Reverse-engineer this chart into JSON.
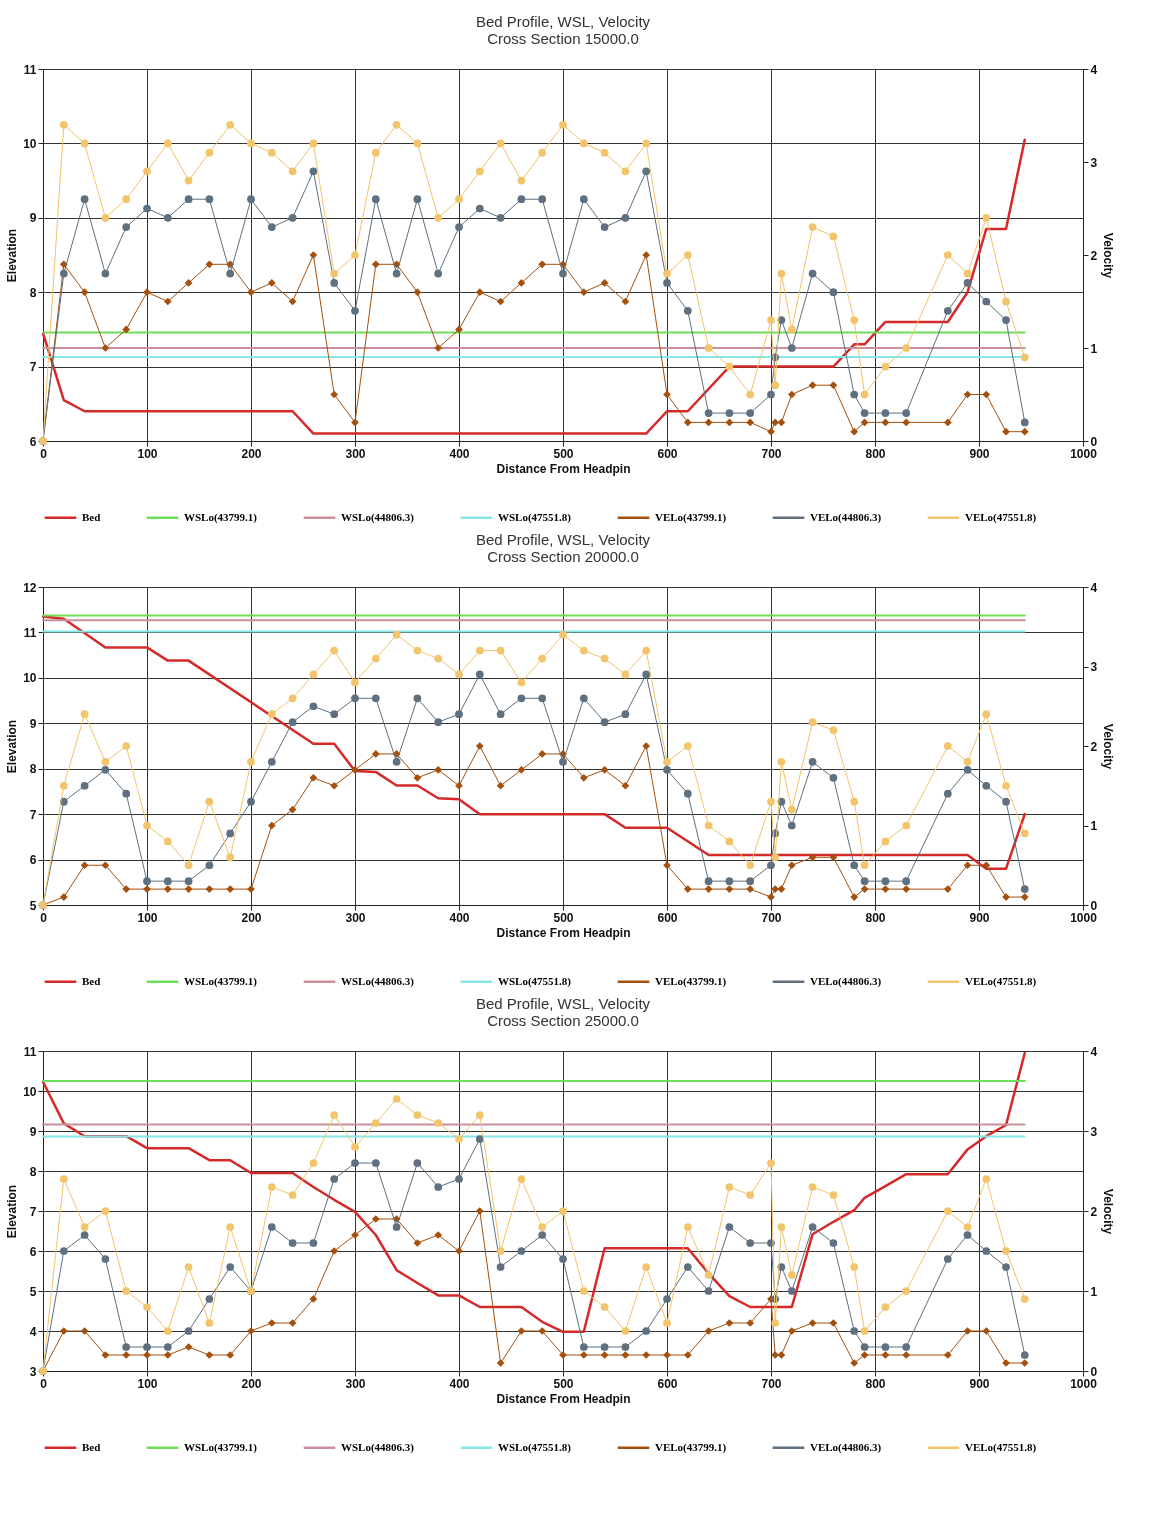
{
  "chart_data": [
    {
      "type": "line",
      "title": "Bed Profile, WSL, Velocity",
      "subtitle": "Cross Section 15000.0",
      "xlabel": "Distance From Headpin",
      "ylabel": "Elevation",
      "y2label": "Velocity",
      "x": [
        0,
        20,
        40,
        60,
        80,
        100,
        120,
        140,
        160,
        180,
        200,
        220,
        240,
        260,
        280,
        300,
        320,
        340,
        360,
        380,
        400,
        420,
        440,
        460,
        480,
        500,
        520,
        540,
        560,
        580,
        600,
        620,
        640,
        660,
        680,
        700,
        704,
        710,
        720,
        740,
        760,
        780,
        790,
        810,
        830,
        870,
        889,
        907,
        926,
        944
      ],
      "xlim": [
        0,
        1000
      ],
      "xticks": [
        0,
        100,
        200,
        300,
        400,
        500,
        600,
        700,
        800,
        900,
        1000
      ],
      "ylim": [
        6,
        11
      ],
      "yticks": [
        6,
        7,
        8,
        9,
        10,
        11
      ],
      "y2lim": [
        0,
        4
      ],
      "y2ticks": [
        0,
        1,
        2,
        3,
        4
      ],
      "grid": true,
      "legend": "bottom",
      "line_style": "solid",
      "series": [
        {
          "name": "Bed",
          "color": "#d42a2a",
          "x": [
            0,
            20,
            40,
            240,
            260,
            580,
            600,
            620,
            660,
            760,
            780,
            790,
            810,
            870,
            889,
            907,
            926,
            944
          ],
          "values": [
            7.45,
            6.55,
            6.4,
            6.4,
            6.1,
            6.1,
            6.4,
            6.4,
            7.0,
            7.0,
            7.3,
            7.3,
            7.6,
            7.6,
            8.0,
            8.85,
            8.85,
            10.05
          ]
        },
        {
          "name": "WSLo(43799.1)",
          "color": "#6fdc5a",
          "x": [
            0,
            944
          ],
          "values": [
            7.46,
            7.46
          ]
        },
        {
          "name": "WSLo(44806.3)",
          "color": "#c9909c",
          "x": [
            0,
            944
          ],
          "values": [
            7.25,
            7.25
          ]
        },
        {
          "name": "WSLo(47551.8)",
          "color": "#88e6e6",
          "x": [
            0,
            944
          ],
          "values": [
            7.13,
            7.13
          ]
        },
        {
          "name": "VELo(43799.1)",
          "color": "#a4500e",
          "axis": "y2",
          "marker": "diamond",
          "values": [
            0,
            1.9,
            1.6,
            1.0,
            1.2,
            1.6,
            1.5,
            1.7,
            1.9,
            1.9,
            1.6,
            1.7,
            1.5,
            2.0,
            0.5,
            0.2,
            1.9,
            1.9,
            1.6,
            1.0,
            1.2,
            1.6,
            1.5,
            1.7,
            1.9,
            1.9,
            1.6,
            1.7,
            1.5,
            2.0,
            0.5,
            0.2,
            0.2,
            0.2,
            0.2,
            0.1,
            0.2,
            0.2,
            0.5,
            0.6,
            0.6,
            0.1,
            0.2,
            0.2,
            0.2,
            0.2,
            0.5,
            0.5,
            0.1,
            0.1
          ]
        },
        {
          "name": "VELo(44806.3)",
          "color": "#5f7080",
          "axis": "y2",
          "marker": "circle",
          "values": [
            0,
            1.8,
            2.6,
            1.8,
            2.3,
            2.5,
            2.4,
            2.6,
            2.6,
            1.8,
            2.6,
            2.3,
            2.4,
            2.9,
            1.7,
            1.4,
            2.6,
            1.8,
            2.6,
            1.8,
            2.3,
            2.5,
            2.4,
            2.6,
            2.6,
            1.8,
            2.6,
            2.3,
            2.4,
            2.9,
            1.7,
            1.4,
            0.3,
            0.3,
            0.3,
            0.5,
            0.9,
            1.3,
            1.0,
            1.8,
            1.6,
            0.5,
            0.3,
            0.3,
            0.3,
            1.4,
            1.7,
            1.5,
            1.3,
            0.2
          ]
        },
        {
          "name": "VELo(47551.8)",
          "color": "#f2c46b",
          "axis": "y2",
          "marker": "circle",
          "values": [
            0,
            3.4,
            3.2,
            2.4,
            2.6,
            2.9,
            3.2,
            2.8,
            3.1,
            3.4,
            3.2,
            3.1,
            2.9,
            3.2,
            1.8,
            2.0,
            3.1,
            3.4,
            3.2,
            2.4,
            2.6,
            2.9,
            3.2,
            2.8,
            3.1,
            3.4,
            3.2,
            3.1,
            2.9,
            3.2,
            1.8,
            2.0,
            1.0,
            0.8,
            0.5,
            1.3,
            0.6,
            1.8,
            1.2,
            2.3,
            2.2,
            1.3,
            0.5,
            0.8,
            1.0,
            2.0,
            1.8,
            2.4,
            1.5,
            0.9
          ]
        }
      ]
    },
    {
      "type": "line",
      "title": "Bed Profile, WSL, Velocity",
      "subtitle": "Cross Section 20000.0",
      "xlabel": "Distance From Headpin",
      "ylabel": "Elevation",
      "y2label": "Velocity",
      "x": [
        0,
        20,
        40,
        60,
        80,
        100,
        120,
        140,
        160,
        180,
        200,
        220,
        240,
        260,
        280,
        300,
        320,
        340,
        360,
        380,
        400,
        420,
        440,
        460,
        480,
        500,
        520,
        540,
        560,
        580,
        600,
        620,
        640,
        660,
        680,
        700,
        704,
        710,
        720,
        740,
        760,
        780,
        790,
        810,
        830,
        870,
        889,
        907,
        926,
        944
      ],
      "xlim": [
        0,
        1000
      ],
      "xticks": [
        0,
        100,
        200,
        300,
        400,
        500,
        600,
        700,
        800,
        900,
        1000
      ],
      "ylim": [
        5,
        12
      ],
      "yticks": [
        5,
        6,
        7,
        8,
        9,
        10,
        11,
        12
      ],
      "y2lim": [
        0,
        4
      ],
      "y2ticks": [
        0,
        1,
        2,
        3,
        4
      ],
      "grid": true,
      "legend": "bottom",
      "line_style": "solid",
      "series": [
        {
          "name": "Bed",
          "color": "#d42a2a",
          "x": [
            0,
            20,
            60,
            100,
            120,
            140,
            260,
            280,
            300,
            320,
            340,
            360,
            380,
            400,
            420,
            540,
            560,
            600,
            640,
            889,
            907,
            926,
            944
          ],
          "values": [
            11.35,
            11.3,
            10.67,
            10.67,
            10.38,
            10.38,
            8.55,
            8.55,
            7.95,
            7.93,
            7.63,
            7.63,
            7.35,
            7.33,
            7.0,
            7.0,
            6.7,
            6.7,
            6.1,
            6.1,
            5.8,
            5.8,
            7.0
          ]
        },
        {
          "name": "WSLo(43799.1)",
          "color": "#6fdc5a",
          "x": [
            0,
            944
          ],
          "values": [
            11.37,
            11.37
          ]
        },
        {
          "name": "WSLo(44806.3)",
          "color": "#c9909c",
          "x": [
            0,
            944
          ],
          "values": [
            11.27,
            11.27
          ]
        },
        {
          "name": "WSLo(47551.8)",
          "color": "#88e6e6",
          "x": [
            0,
            944
          ],
          "values": [
            11.02,
            11.02
          ]
        },
        {
          "name": "VELo(43799.1)",
          "color": "#a4500e",
          "axis": "y2",
          "marker": "diamond",
          "values": [
            0,
            0.1,
            0.5,
            0.5,
            0.2,
            0.2,
            0.2,
            0.2,
            0.2,
            0.2,
            0.2,
            1.0,
            1.2,
            1.6,
            1.5,
            1.7,
            1.9,
            1.9,
            1.6,
            1.7,
            1.5,
            2.0,
            1.5,
            1.7,
            1.9,
            1.9,
            1.6,
            1.7,
            1.5,
            2.0,
            0.5,
            0.2,
            0.2,
            0.2,
            0.2,
            0.1,
            0.2,
            0.2,
            0.5,
            0.6,
            0.6,
            0.1,
            0.2,
            0.2,
            0.2,
            0.2,
            0.5,
            0.5,
            0.1,
            0.1
          ]
        },
        {
          "name": "VELo(44806.3)",
          "color": "#5f7080",
          "axis": "y2",
          "marker": "circle",
          "values": [
            0,
            1.3,
            1.5,
            1.7,
            1.4,
            0.3,
            0.3,
            0.3,
            0.5,
            0.9,
            1.3,
            1.8,
            2.3,
            2.5,
            2.4,
            2.6,
            2.6,
            1.8,
            2.6,
            2.3,
            2.4,
            2.9,
            2.4,
            2.6,
            2.6,
            1.8,
            2.6,
            2.3,
            2.4,
            2.9,
            1.7,
            1.4,
            0.3,
            0.3,
            0.3,
            0.5,
            0.9,
            1.3,
            1.0,
            1.8,
            1.6,
            0.5,
            0.3,
            0.3,
            0.3,
            1.4,
            1.7,
            1.5,
            1.3,
            0.2
          ]
        },
        {
          "name": "VELo(47551.8)",
          "color": "#f2c46b",
          "axis": "y2",
          "marker": "circle",
          "values": [
            0,
            1.5,
            2.4,
            1.8,
            2.0,
            1.0,
            0.8,
            0.5,
            1.3,
            0.6,
            1.8,
            2.4,
            2.6,
            2.9,
            3.2,
            2.8,
            3.1,
            3.4,
            3.2,
            3.1,
            2.9,
            3.2,
            3.2,
            2.8,
            3.1,
            3.4,
            3.2,
            3.1,
            2.9,
            3.2,
            1.8,
            2.0,
            1.0,
            0.8,
            0.5,
            1.3,
            0.6,
            1.8,
            1.2,
            2.3,
            2.2,
            1.3,
            0.5,
            0.8,
            1.0,
            2.0,
            1.8,
            2.4,
            1.5,
            0.9
          ]
        }
      ]
    },
    {
      "type": "line",
      "title": "Bed Profile, WSL, Velocity",
      "subtitle": "Cross Section 25000.0",
      "xlabel": "Distance From Headpin",
      "ylabel": "Elevation",
      "y2label": "Velocity",
      "x": [
        0,
        20,
        40,
        60,
        80,
        100,
        120,
        140,
        160,
        180,
        200,
        220,
        240,
        260,
        280,
        300,
        320,
        340,
        360,
        380,
        400,
        420,
        440,
        460,
        480,
        500,
        520,
        540,
        560,
        580,
        600,
        620,
        640,
        660,
        680,
        700,
        704,
        710,
        720,
        740,
        760,
        780,
        790,
        810,
        830,
        870,
        889,
        907,
        926,
        944
      ],
      "xlim": [
        0,
        1000
      ],
      "xticks": [
        0,
        100,
        200,
        300,
        400,
        500,
        600,
        700,
        800,
        900,
        1000
      ],
      "ylim": [
        3,
        11
      ],
      "yticks": [
        3,
        4,
        5,
        6,
        7,
        8,
        9,
        10,
        11
      ],
      "y2lim": [
        0,
        4
      ],
      "y2ticks": [
        0,
        1,
        2,
        3,
        4
      ],
      "grid": true,
      "legend": "bottom",
      "line_style": "solid",
      "series": [
        {
          "name": "Bed",
          "color": "#d42a2a",
          "x": [
            0,
            20,
            40,
            80,
            100,
            140,
            160,
            180,
            200,
            240,
            260,
            280,
            300,
            320,
            340,
            360,
            380,
            400,
            420,
            460,
            480,
            500,
            520,
            540,
            620,
            640,
            660,
            680,
            720,
            740,
            760,
            780,
            790,
            810,
            830,
            870,
            889,
            907,
            926,
            944
          ],
          "values": [
            10.23,
            9.19,
            8.87,
            8.87,
            8.57,
            8.57,
            8.27,
            8.27,
            7.95,
            7.95,
            7.6,
            7.28,
            6.98,
            6.4,
            5.52,
            5.2,
            4.89,
            4.89,
            4.6,
            4.6,
            4.23,
            3.98,
            3.98,
            6.07,
            6.07,
            5.44,
            4.87,
            4.6,
            4.6,
            6.42,
            6.73,
            7.02,
            7.33,
            7.62,
            7.92,
            7.92,
            8.54,
            8.87,
            9.15,
            10.95
          ]
        },
        {
          "name": "WSLo(43799.1)",
          "color": "#6fdc5a",
          "x": [
            0,
            944
          ],
          "values": [
            10.25,
            10.25
          ]
        },
        {
          "name": "WSLo(44806.3)",
          "color": "#c9909c",
          "x": [
            0,
            944
          ],
          "values": [
            9.16,
            9.16
          ]
        },
        {
          "name": "WSLo(47551.8)",
          "color": "#88e6e6",
          "x": [
            0,
            944
          ],
          "values": [
            8.86,
            8.86
          ]
        },
        {
          "name": "VELo(43799.1)",
          "color": "#a4500e",
          "axis": "y2",
          "marker": "diamond",
          "values": [
            0,
            0.5,
            0.5,
            0.2,
            0.2,
            0.2,
            0.2,
            0.3,
            0.2,
            0.2,
            0.5,
            0.6,
            0.6,
            0.9,
            1.5,
            1.7,
            1.9,
            1.9,
            1.6,
            1.7,
            1.5,
            2.0,
            0.1,
            0.5,
            0.5,
            0.2,
            0.2,
            0.2,
            0.2,
            0.2,
            0.2,
            0.2,
            0.5,
            0.6,
            0.6,
            0.9,
            0.2,
            0.2,
            0.5,
            0.6,
            0.6,
            0.1,
            0.2,
            0.2,
            0.2,
            0.2,
            0.5,
            0.5,
            0.1,
            0.1
          ]
        },
        {
          "name": "VELo(44806.3)",
          "color": "#5f7080",
          "axis": "y2",
          "marker": "circle",
          "values": [
            0,
            1.5,
            1.7,
            1.4,
            0.3,
            0.3,
            0.3,
            0.5,
            0.9,
            1.3,
            1.0,
            1.8,
            1.6,
            1.6,
            2.4,
            2.6,
            2.6,
            1.8,
            2.6,
            2.3,
            2.4,
            2.9,
            1.3,
            1.5,
            1.7,
            1.4,
            0.3,
            0.3,
            0.3,
            0.5,
            0.9,
            1.3,
            1.0,
            1.8,
            1.6,
            1.6,
            0.9,
            1.3,
            1.0,
            1.8,
            1.6,
            0.5,
            0.3,
            0.3,
            0.3,
            1.4,
            1.7,
            1.5,
            1.3,
            0.2
          ]
        },
        {
          "name": "VELo(47551.8)",
          "color": "#f2c46b",
          "axis": "y2",
          "marker": "circle",
          "values": [
            0,
            2.4,
            1.8,
            2.0,
            1.0,
            0.8,
            0.5,
            1.3,
            0.6,
            1.8,
            1.0,
            2.3,
            2.2,
            2.6,
            3.2,
            2.8,
            3.1,
            3.4,
            3.2,
            3.1,
            2.9,
            3.2,
            1.5,
            2.4,
            1.8,
            2.0,
            1.0,
            0.8,
            0.5,
            1.3,
            0.6,
            1.8,
            1.2,
            2.3,
            2.2,
            2.6,
            0.6,
            1.8,
            1.2,
            2.3,
            2.2,
            1.3,
            0.5,
            0.8,
            1.0,
            2.0,
            1.8,
            2.4,
            1.5,
            0.9
          ]
        }
      ]
    }
  ]
}
